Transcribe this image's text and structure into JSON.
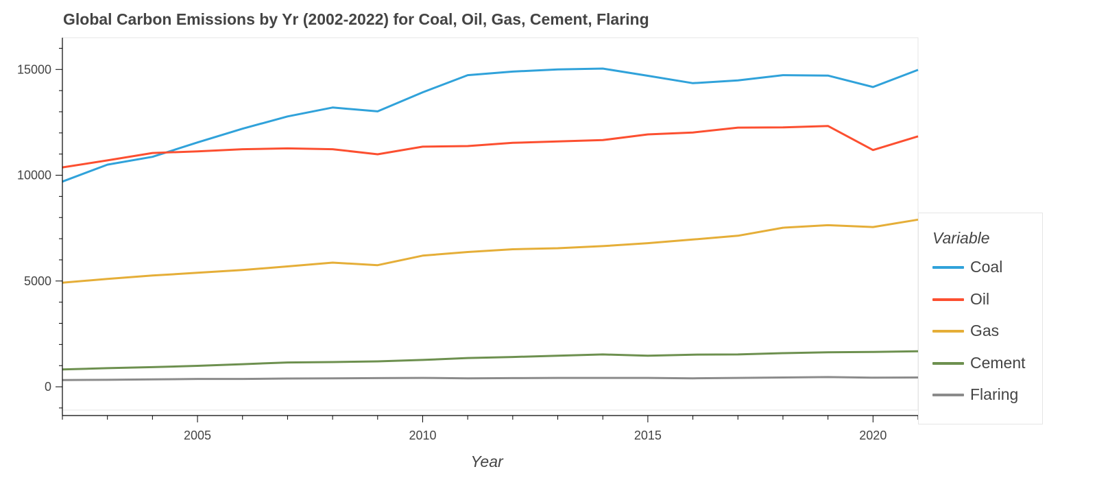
{
  "chart_data": {
    "type": "line",
    "title": "Global Carbon Emissions by Yr (2002-2022) for Coal, Oil, Gas, Cement, Flaring",
    "xlabel": "Year",
    "ylabel": "",
    "xlim": [
      2002,
      2021
    ],
    "ylim": [
      -1100,
      16500
    ],
    "x_ticks": [
      2005,
      2010,
      2015,
      2020
    ],
    "y_ticks": [
      0,
      5000,
      10000,
      15000
    ],
    "x": [
      2002,
      2003,
      2004,
      2005,
      2006,
      2007,
      2008,
      2009,
      2010,
      2011,
      2012,
      2013,
      2014,
      2015,
      2016,
      2017,
      2018,
      2019,
      2020,
      2021
    ],
    "legend_title": "Variable",
    "legend_position": "right",
    "grid": false,
    "series": [
      {
        "name": "Coal",
        "color": "#30a2da",
        "values": [
          9700,
          10500,
          10870,
          11550,
          12200,
          12780,
          13200,
          13020,
          13920,
          14730,
          14900,
          15000,
          15040,
          14700,
          14350,
          14480,
          14730,
          14710,
          14170,
          14980
        ]
      },
      {
        "name": "Oil",
        "color": "#fc4f30",
        "values": [
          10370,
          10700,
          11050,
          11130,
          11230,
          11270,
          11230,
          10990,
          11350,
          11380,
          11530,
          11600,
          11660,
          11930,
          12020,
          12250,
          12260,
          12330,
          11190,
          11840
        ]
      },
      {
        "name": "Gas",
        "color": "#e5ae38",
        "values": [
          4920,
          5100,
          5260,
          5390,
          5520,
          5690,
          5870,
          5750,
          6200,
          6370,
          6500,
          6550,
          6650,
          6790,
          6960,
          7140,
          7520,
          7640,
          7550,
          7900
        ]
      },
      {
        "name": "Cement",
        "color": "#6d904f",
        "values": [
          820,
          880,
          930,
          990,
          1070,
          1150,
          1170,
          1200,
          1270,
          1360,
          1410,
          1470,
          1530,
          1470,
          1520,
          1530,
          1590,
          1630,
          1650,
          1680
        ]
      },
      {
        "name": "Flaring",
        "color": "#8b8b8b",
        "values": [
          320,
          330,
          350,
          370,
          370,
          390,
          400,
          410,
          420,
          400,
          410,
          420,
          420,
          420,
          400,
          420,
          440,
          460,
          430,
          440
        ]
      }
    ]
  }
}
